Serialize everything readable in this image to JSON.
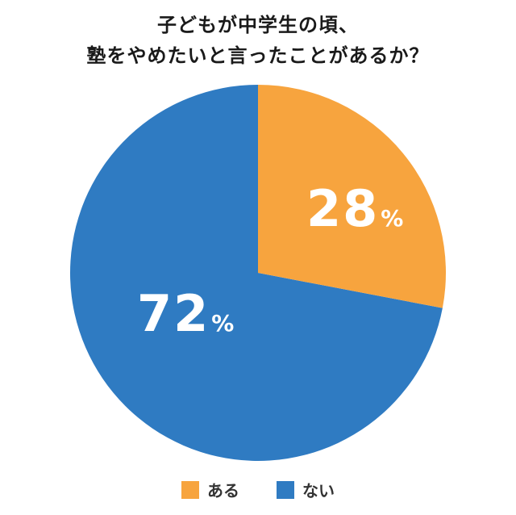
{
  "title": {
    "line1": "子どもが中学生の頃、",
    "line2": "塾をやめたいと言ったことがあるか？"
  },
  "colors": {
    "aru": "#f7a43e",
    "nai": "#2f7bc2"
  },
  "labels": {
    "aru": {
      "num": "28",
      "pct": "%"
    },
    "nai": {
      "num": "72",
      "pct": "%"
    }
  },
  "legend": [
    {
      "label": "ある",
      "color": "#f7a43e"
    },
    {
      "label": "ない",
      "color": "#2f7bc2"
    }
  ],
  "chart_data": {
    "type": "pie",
    "title": "子どもが中学生の頃、塾をやめたいと言ったことがあるか？",
    "categories": [
      "ある",
      "ない"
    ],
    "values": [
      28,
      72
    ],
    "unit": "%",
    "colors": [
      "#f7a43e",
      "#2f7bc2"
    ],
    "start_angle": "12 o'clock, clockwise",
    "legend_position": "bottom"
  }
}
